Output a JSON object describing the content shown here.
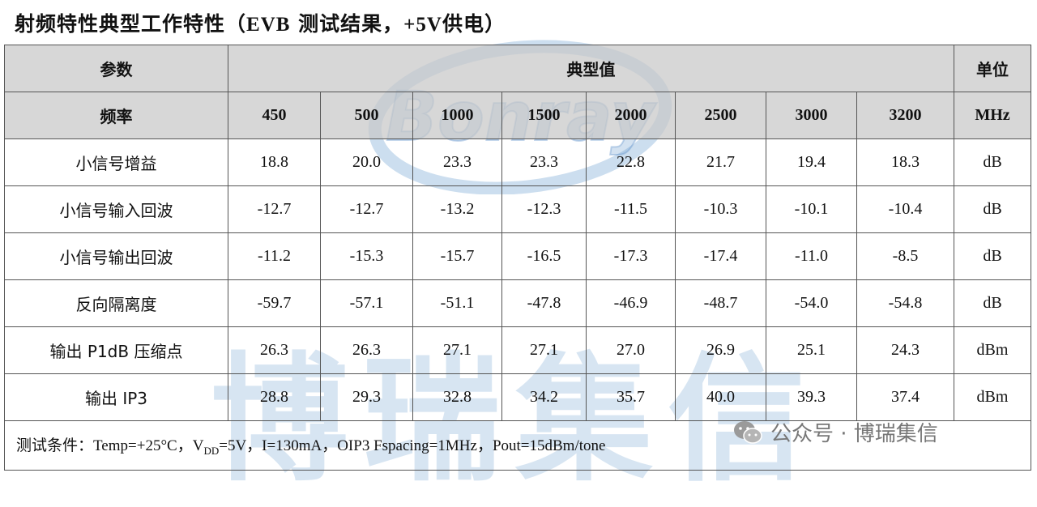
{
  "title": {
    "prefix": "射频特性典型工作特性（",
    "latin": "EVB",
    "suffix": " 测试结果，",
    "voltage": "+5V",
    "end": "供电）"
  },
  "watermark": {
    "logo_text": "Bonray",
    "big_text": "博瑞集信",
    "wechat_label": "公众号 · 博瑞集信"
  },
  "table": {
    "header": {
      "param": "参数",
      "typical": "典型值",
      "unit": "单位"
    },
    "freq_row": {
      "label": "频率",
      "values": [
        "450",
        "500",
        "1000",
        "1500",
        "2000",
        "2500",
        "3000",
        "3200"
      ],
      "unit": "MHz"
    },
    "rows": [
      {
        "label": "小信号增益",
        "values": [
          "18.8",
          "20.0",
          "23.3",
          "23.3",
          "22.8",
          "21.7",
          "19.4",
          "18.3"
        ],
        "unit": "dB"
      },
      {
        "label": "小信号输入回波",
        "values": [
          "-12.7",
          "-12.7",
          "-13.2",
          "-12.3",
          "-11.5",
          "-10.3",
          "-10.1",
          "-10.4"
        ],
        "unit": "dB"
      },
      {
        "label": "小信号输出回波",
        "values": [
          "-11.2",
          "-15.3",
          "-15.7",
          "-16.5",
          "-17.3",
          "-17.4",
          "-11.0",
          "-8.5"
        ],
        "unit": "dB"
      },
      {
        "label": "反向隔离度",
        "values": [
          "-59.7",
          "-57.1",
          "-51.1",
          "-47.8",
          "-46.9",
          "-48.7",
          "-54.0",
          "-54.8"
        ],
        "unit": "dB"
      },
      {
        "label": "输出 P1dB 压缩点",
        "values": [
          "26.3",
          "26.3",
          "27.1",
          "27.1",
          "27.0",
          "26.9",
          "25.1",
          "24.3"
        ],
        "unit": "dBm"
      },
      {
        "label": "输出 IP3",
        "values": [
          "28.8",
          "29.3",
          "32.8",
          "34.2",
          "35.7",
          "40.0",
          "39.3",
          "37.4"
        ],
        "unit": "dBm"
      }
    ],
    "note": {
      "label": "测试条件：",
      "temp": "Temp=+25°C，",
      "vdd_v": "V",
      "vdd_sub": "DD",
      "vdd_rest": "=5V，I=130mA，OIP3 Fspacing=1MHz，Pout=15dBm/tone"
    }
  },
  "colors": {
    "header_bg": "#c8c8c8",
    "watermark": "#6ea0d2"
  }
}
